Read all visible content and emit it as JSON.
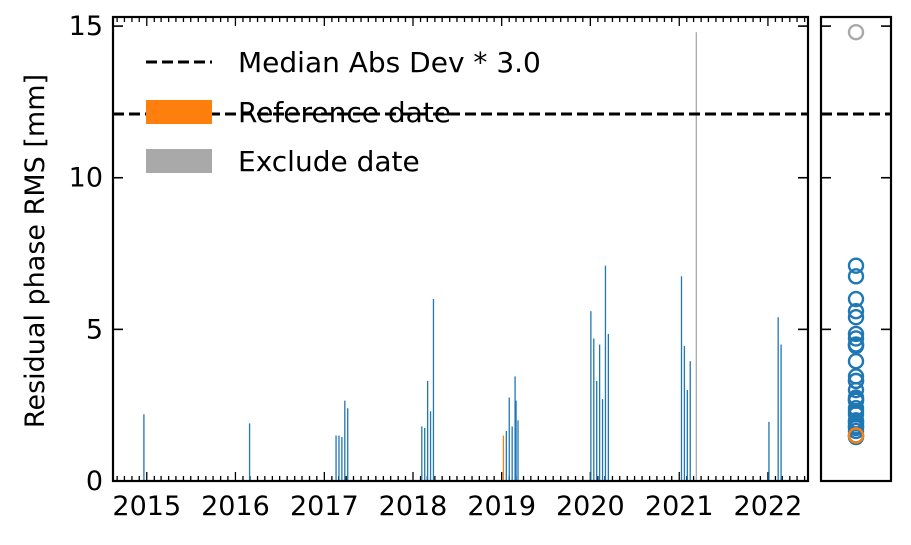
{
  "chart_data": [
    {
      "type": "bar",
      "ylabel": "Residual phase RMS [mm]",
      "xlabel": "",
      "x_ticks": [
        "2015",
        "2016",
        "2017",
        "2018",
        "2019",
        "2020",
        "2021",
        "2022"
      ],
      "y_ticks": [
        "0",
        "5",
        "10",
        "15"
      ],
      "ylim": [
        0,
        15.3
      ],
      "xlim": [
        "2014-08-15",
        "2022-06-15"
      ],
      "threshold": {
        "value": 12.1,
        "label": "Median Abs Dev * 3.0",
        "style": "dashed",
        "color": "#000000"
      },
      "legend": {
        "placement": "top-left",
        "entries": [
          {
            "label": "Median Abs Dev * 3.0",
            "kind": "dashed-line",
            "color": "#000000"
          },
          {
            "label": "Reference date",
            "kind": "patch",
            "color": "#ff7f0e"
          },
          {
            "label": "Exclude date",
            "kind": "patch",
            "color": "#a9a9a9"
          }
        ]
      },
      "series": [
        {
          "kind": "normal",
          "color": "#1f77b4",
          "points": [
            [
              "2014-12-20",
              2.2
            ],
            [
              "2016-02-28",
              1.9
            ],
            [
              "2017-02-18",
              1.5
            ],
            [
              "2017-03-02",
              1.5
            ],
            [
              "2017-03-14",
              1.45
            ],
            [
              "2017-03-26",
              2.65
            ],
            [
              "2017-04-07",
              2.4
            ],
            [
              "2018-02-06",
              1.8
            ],
            [
              "2018-02-18",
              1.75
            ],
            [
              "2018-03-02",
              3.3
            ],
            [
              "2018-03-14",
              2.3
            ],
            [
              "2018-03-26",
              6.0
            ],
            [
              "2019-01-20",
              1.65
            ],
            [
              "2019-02-01",
              2.75
            ],
            [
              "2019-02-13",
              1.8
            ],
            [
              "2019-02-25",
              3.45
            ],
            [
              "2019-03-01",
              2.65
            ],
            [
              "2019-03-09",
              2.0
            ],
            [
              "2020-01-03",
              5.6
            ],
            [
              "2020-01-15",
              4.7
            ],
            [
              "2020-01-27",
              3.3
            ],
            [
              "2020-02-08",
              4.5
            ],
            [
              "2020-02-20",
              2.7
            ],
            [
              "2020-03-03",
              7.1
            ],
            [
              "2020-03-15",
              4.85
            ],
            [
              "2021-01-10",
              6.75
            ],
            [
              "2021-01-22",
              4.45
            ],
            [
              "2021-02-03",
              3.0
            ],
            [
              "2021-02-15",
              3.95
            ],
            [
              "2022-01-05",
              1.95
            ],
            [
              "2022-02-12",
              5.4
            ],
            [
              "2022-02-24",
              4.5
            ]
          ]
        },
        {
          "kind": "reference",
          "color": "#ff7f0e",
          "points": [
            [
              "2019-01-08",
              1.5
            ]
          ]
        },
        {
          "kind": "excluded",
          "color": "#a9a9a9",
          "points": [
            [
              "2021-03-12",
              14.8
            ]
          ]
        }
      ]
    },
    {
      "type": "scatter",
      "ylim": [
        0,
        15.3
      ],
      "threshold": 12.1,
      "marker": "circle-open",
      "series": [
        {
          "kind": "normal",
          "color": "#1f77b4",
          "values": [
            2.2,
            1.9,
            1.5,
            1.5,
            1.45,
            2.65,
            2.4,
            1.8,
            1.75,
            3.3,
            2.3,
            6.0,
            1.65,
            2.75,
            1.8,
            3.45,
            2.65,
            2.0,
            5.6,
            4.7,
            3.3,
            4.5,
            2.7,
            7.1,
            4.85,
            6.75,
            4.45,
            3.0,
            3.95,
            1.95,
            5.4,
            4.5
          ]
        },
        {
          "kind": "reference",
          "color": "#ff7f0e",
          "values": [
            1.5
          ]
        },
        {
          "kind": "excluded",
          "color": "#a9a9a9",
          "values": [
            14.8
          ]
        }
      ]
    }
  ]
}
